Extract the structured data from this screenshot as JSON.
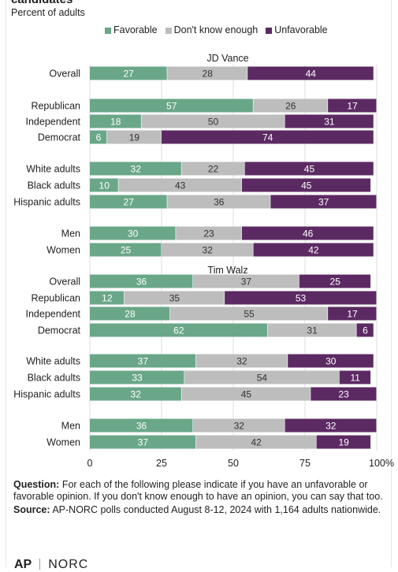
{
  "header": {
    "title": "candidates",
    "subtitle": "Percent of adults"
  },
  "legend": [
    {
      "label": "Favorable",
      "color": "#6aa789"
    },
    {
      "label": "Don't know enough",
      "color": "#bdbdbd"
    },
    {
      "label": "Unfavorable",
      "color": "#5c2a63"
    }
  ],
  "chart_data": {
    "type": "bar",
    "orientation": "horizontal",
    "stacked": true,
    "xlim": [
      0,
      100
    ],
    "x_ticks": [
      "0",
      "25",
      "50",
      "75",
      "100%"
    ],
    "series_names": [
      "Favorable",
      "Don't know enough",
      "Unfavorable"
    ],
    "panels": [
      {
        "title": "JD Vance",
        "rows": [
          {
            "label": "Overall",
            "values": [
              27,
              28,
              44
            ]
          },
          {
            "label": "Republican",
            "values": [
              57,
              26,
              17
            ]
          },
          {
            "label": "Independent",
            "values": [
              18,
              50,
              31
            ]
          },
          {
            "label": "Democrat",
            "values": [
              6,
              19,
              74
            ]
          },
          {
            "label": "White adults",
            "values": [
              32,
              22,
              45
            ]
          },
          {
            "label": "Black adults",
            "values": [
              10,
              43,
              45
            ]
          },
          {
            "label": "Hispanic adults",
            "values": [
              27,
              36,
              37
            ]
          },
          {
            "label": "Men",
            "values": [
              30,
              23,
              46
            ]
          },
          {
            "label": "Women",
            "values": [
              25,
              32,
              42
            ]
          }
        ]
      },
      {
        "title": "Tim Walz",
        "rows": [
          {
            "label": "Overall",
            "values": [
              36,
              37,
              25
            ]
          },
          {
            "label": "Republican",
            "values": [
              12,
              35,
              53
            ]
          },
          {
            "label": "Independent",
            "values": [
              28,
              55,
              17
            ]
          },
          {
            "label": "Democrat",
            "values": [
              62,
              31,
              6
            ]
          },
          {
            "label": "White adults",
            "values": [
              37,
              32,
              30
            ]
          },
          {
            "label": "Black adults",
            "values": [
              33,
              54,
              11
            ]
          },
          {
            "label": "Hispanic adults",
            "values": [
              32,
              45,
              23
            ]
          },
          {
            "label": "Men",
            "values": [
              36,
              32,
              32
            ]
          },
          {
            "label": "Women",
            "values": [
              37,
              42,
              19
            ]
          }
        ]
      }
    ]
  },
  "footer": {
    "question_label": "Question:",
    "question_text": "For each of the following please indicate if you have an unfavorable or favorable opinion. If you don't know enough to have an opinion, you can say that too.",
    "source_label": "Source:",
    "source_text": "AP-NORC polls conducted August 8-12, 2024 with 1,164 adults nationwide.",
    "logo_ap": "AP",
    "logo_norc": "NORC"
  }
}
